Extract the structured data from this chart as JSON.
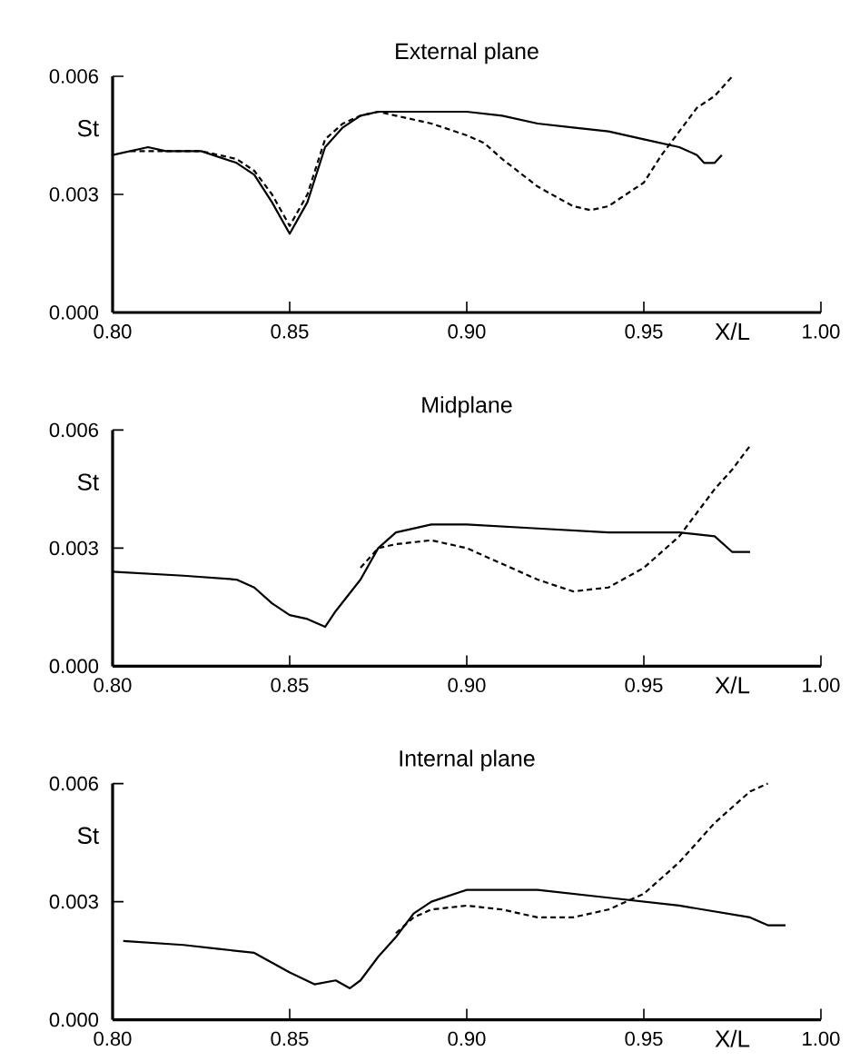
{
  "chart_data": [
    {
      "type": "line",
      "title": "External plane",
      "xlabel": "X/L",
      "ylabel": "St",
      "xlim": [
        0.8,
        1.0
      ],
      "ylim": [
        0,
        0.006
      ],
      "xticks": [
        {
          "value": 0.8,
          "label": "0.80"
        },
        {
          "value": 0.85,
          "label": "0.85"
        },
        {
          "value": 0.9,
          "label": "0.90"
        },
        {
          "value": 0.95,
          "label": "0.95"
        },
        {
          "value": 1.0,
          "label": "1.00"
        }
      ],
      "yticks": [
        {
          "value": 0,
          "label": "0.000"
        },
        {
          "value": 0.003,
          "label": "0.003"
        },
        {
          "value": 0.006,
          "label": "0.006"
        }
      ],
      "series": [
        {
          "color": "#000000",
          "line_style": "solid",
          "x": [
            0.8,
            0.81,
            0.815,
            0.825,
            0.835,
            0.84,
            0.845,
            0.85,
            0.855,
            0.86,
            0.865,
            0.87,
            0.875,
            0.89,
            0.9,
            0.91,
            0.92,
            0.93,
            0.94,
            0.95,
            0.96,
            0.965,
            0.967,
            0.97,
            0.972
          ],
          "values": [
            0.004,
            0.0042,
            0.0041,
            0.0041,
            0.0038,
            0.0035,
            0.0028,
            0.002,
            0.0028,
            0.0042,
            0.0047,
            0.005,
            0.0051,
            0.0051,
            0.0051,
            0.005,
            0.0048,
            0.0047,
            0.0046,
            0.0044,
            0.0042,
            0.004,
            0.0038,
            0.0038,
            0.004
          ]
        },
        {
          "color": "#000000",
          "line_style": "dashed",
          "x": [
            0.805,
            0.815,
            0.825,
            0.835,
            0.84,
            0.845,
            0.85,
            0.855,
            0.86,
            0.865,
            0.87,
            0.875,
            0.88,
            0.89,
            0.9,
            0.905,
            0.91,
            0.92,
            0.93,
            0.935,
            0.94,
            0.95,
            0.955,
            0.96,
            0.965,
            0.97,
            0.975
          ],
          "values": [
            0.0041,
            0.0041,
            0.0041,
            0.0039,
            0.0036,
            0.003,
            0.0022,
            0.003,
            0.0044,
            0.0048,
            0.005,
            0.0051,
            0.005,
            0.0048,
            0.0045,
            0.0043,
            0.0039,
            0.0032,
            0.0027,
            0.0026,
            0.0027,
            0.0033,
            0.004,
            0.0046,
            0.0052,
            0.0055,
            0.006
          ]
        }
      ]
    },
    {
      "type": "line",
      "title": "Midplane",
      "xlabel": "X/L",
      "ylabel": "St",
      "xlim": [
        0.8,
        1.0
      ],
      "ylim": [
        0,
        0.006
      ],
      "xticks": [
        {
          "value": 0.8,
          "label": "0.80"
        },
        {
          "value": 0.85,
          "label": "0.85"
        },
        {
          "value": 0.9,
          "label": "0.90"
        },
        {
          "value": 0.95,
          "label": "0.95"
        },
        {
          "value": 1.0,
          "label": "1.00"
        }
      ],
      "yticks": [
        {
          "value": 0,
          "label": "0.000"
        },
        {
          "value": 0.003,
          "label": "0.003"
        },
        {
          "value": 0.006,
          "label": "0.006"
        }
      ],
      "series": [
        {
          "color": "#000000",
          "line_style": "solid",
          "x": [
            0.8,
            0.82,
            0.835,
            0.84,
            0.845,
            0.85,
            0.855,
            0.86,
            0.863,
            0.87,
            0.875,
            0.88,
            0.89,
            0.9,
            0.92,
            0.94,
            0.96,
            0.97,
            0.975,
            0.98
          ],
          "values": [
            0.0024,
            0.0023,
            0.0022,
            0.002,
            0.0016,
            0.0013,
            0.0012,
            0.001,
            0.0014,
            0.0022,
            0.003,
            0.0034,
            0.0036,
            0.0036,
            0.0035,
            0.0034,
            0.0034,
            0.0033,
            0.0029,
            0.0029
          ]
        },
        {
          "color": "#000000",
          "line_style": "dashed",
          "x": [
            0.87,
            0.875,
            0.88,
            0.89,
            0.9,
            0.91,
            0.92,
            0.93,
            0.94,
            0.95,
            0.96,
            0.97,
            0.975,
            0.98
          ],
          "values": [
            0.0025,
            0.003,
            0.0031,
            0.0032,
            0.003,
            0.0026,
            0.0022,
            0.0019,
            0.002,
            0.0025,
            0.0033,
            0.0045,
            0.005,
            0.0056
          ]
        }
      ]
    },
    {
      "type": "line",
      "title": "Internal plane",
      "xlabel": "X/L",
      "ylabel": "St",
      "xlim": [
        0.8,
        1.0
      ],
      "ylim": [
        0,
        0.006
      ],
      "xticks": [
        {
          "value": 0.8,
          "label": "0.80"
        },
        {
          "value": 0.85,
          "label": "0.85"
        },
        {
          "value": 0.9,
          "label": "0.90"
        },
        {
          "value": 0.95,
          "label": "0.95"
        },
        {
          "value": 1.0,
          "label": "1.00"
        }
      ],
      "yticks": [
        {
          "value": 0,
          "label": "0.000"
        },
        {
          "value": 0.003,
          "label": "0.003"
        },
        {
          "value": 0.006,
          "label": "0.006"
        }
      ],
      "series": [
        {
          "color": "#000000",
          "line_style": "solid",
          "x": [
            0.803,
            0.82,
            0.83,
            0.84,
            0.85,
            0.857,
            0.863,
            0.867,
            0.87,
            0.875,
            0.88,
            0.885,
            0.89,
            0.9,
            0.92,
            0.94,
            0.96,
            0.98,
            0.985,
            0.99
          ],
          "values": [
            0.002,
            0.0019,
            0.0018,
            0.0017,
            0.0012,
            0.0009,
            0.001,
            0.0008,
            0.001,
            0.0016,
            0.0021,
            0.0027,
            0.003,
            0.0033,
            0.0033,
            0.0031,
            0.0029,
            0.0026,
            0.0024,
            0.0024
          ]
        },
        {
          "color": "#000000",
          "line_style": "dashed",
          "x": [
            0.88,
            0.885,
            0.89,
            0.9,
            0.91,
            0.92,
            0.93,
            0.94,
            0.95,
            0.96,
            0.97,
            0.98,
            0.985
          ],
          "values": [
            0.0022,
            0.0026,
            0.0028,
            0.0029,
            0.0028,
            0.0026,
            0.0026,
            0.0028,
            0.0032,
            0.004,
            0.005,
            0.0058,
            0.006
          ]
        }
      ]
    }
  ]
}
